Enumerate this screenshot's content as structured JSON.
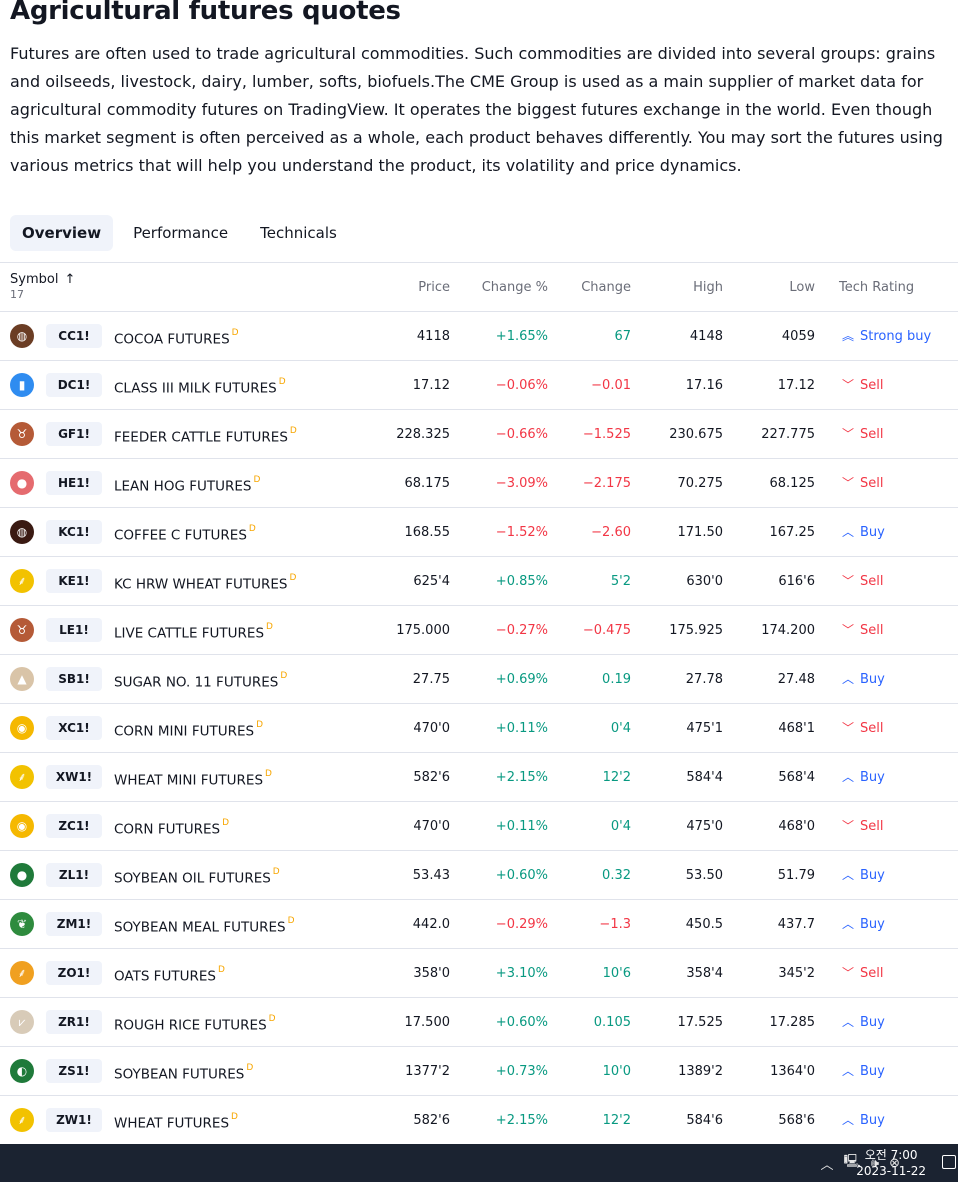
{
  "page": {
    "title": "Agricultural futures quotes",
    "description": "Futures are often used to trade agricultural commodities. Such commodities are divided into several groups: grains and oilseeds, livestock, dairy, lumber, softs, biofuels.The CME Group is used as a main supplier of market data for agricultural commodity futures on TradingView. It operates the biggest futures exchange in the world. Even though this market segment is often perceived as a whole, each product behaves differently. You may sort the futures using various metrics that will help you understand the product, its volatility and price dynamics."
  },
  "tabs": [
    {
      "label": "Overview",
      "active": true
    },
    {
      "label": "Performance",
      "active": false
    },
    {
      "label": "Technicals",
      "active": false
    }
  ],
  "table": {
    "headers": {
      "symbol": "Symbol",
      "count": "17",
      "sort_arrow": "↑",
      "price": "Price",
      "change_pct": "Change %",
      "change": "Change",
      "high": "High",
      "low": "Low",
      "tech_rating": "Tech Rating"
    },
    "delayed_mark": "D",
    "rows": [
      {
        "ticker": "CC1!",
        "name": "COCOA FUTURES",
        "price": "4118",
        "change_pct": "+1.65%",
        "change": "67",
        "high": "4148",
        "low": "4059",
        "rating": "Strong buy",
        "logo_icon": "cocoa-bean-icon",
        "logo_color": "#6b3d24",
        "dir": "pos"
      },
      {
        "ticker": "DC1!",
        "name": "CLASS III MILK FUTURES",
        "price": "17.12",
        "change_pct": "−0.06%",
        "change": "−0.01",
        "high": "17.16",
        "low": "17.12",
        "rating": "Sell",
        "logo_icon": "milk-bottle-icon",
        "logo_color": "#2f8cf0",
        "dir": "neg"
      },
      {
        "ticker": "GF1!",
        "name": "FEEDER CATTLE FUTURES",
        "price": "228.325",
        "change_pct": "−0.66%",
        "change": "−1.525",
        "high": "230.675",
        "low": "227.775",
        "rating": "Sell",
        "logo_icon": "cow-icon",
        "logo_color": "#b55a37",
        "dir": "neg"
      },
      {
        "ticker": "HE1!",
        "name": "LEAN HOG FUTURES",
        "price": "68.175",
        "change_pct": "−3.09%",
        "change": "−2.175",
        "high": "70.275",
        "low": "68.125",
        "rating": "Sell",
        "logo_icon": "pig-icon",
        "logo_color": "#e56b6f",
        "dir": "neg"
      },
      {
        "ticker": "KC1!",
        "name": "COFFEE C FUTURES",
        "price": "168.55",
        "change_pct": "−1.52%",
        "change": "−2.60",
        "high": "171.50",
        "low": "167.25",
        "rating": "Buy",
        "logo_icon": "coffee-bean-icon",
        "logo_color": "#3a1a12",
        "dir": "neg"
      },
      {
        "ticker": "KE1!",
        "name": "KC HRW WHEAT FUTURES",
        "price": "625'4",
        "change_pct": "+0.85%",
        "change": "5'2",
        "high": "630'0",
        "low": "616'6",
        "rating": "Sell",
        "logo_icon": "wheat-icon",
        "logo_color": "#f2c200",
        "dir": "pos"
      },
      {
        "ticker": "LE1!",
        "name": "LIVE CATTLE FUTURES",
        "price": "175.000",
        "change_pct": "−0.27%",
        "change": "−0.475",
        "high": "175.925",
        "low": "174.200",
        "rating": "Sell",
        "logo_icon": "cow-icon",
        "logo_color": "#b55a37",
        "dir": "neg"
      },
      {
        "ticker": "SB1!",
        "name": "SUGAR NO. 11 FUTURES",
        "price": "27.75",
        "change_pct": "+0.69%",
        "change": "0.19",
        "high": "27.78",
        "low": "27.48",
        "rating": "Buy",
        "logo_icon": "sugar-icon",
        "logo_color": "#d9c4a8",
        "dir": "pos"
      },
      {
        "ticker": "XC1!",
        "name": "CORN MINI FUTURES",
        "price": "470'0",
        "change_pct": "+0.11%",
        "change": "0'4",
        "high": "475'1",
        "low": "468'1",
        "rating": "Sell",
        "logo_icon": "corn-icon",
        "logo_color": "#f5b800",
        "dir": "pos"
      },
      {
        "ticker": "XW1!",
        "name": "WHEAT MINI FUTURES",
        "price": "582'6",
        "change_pct": "+2.15%",
        "change": "12'2",
        "high": "584'4",
        "low": "568'4",
        "rating": "Buy",
        "logo_icon": "wheat-icon",
        "logo_color": "#f2c200",
        "dir": "pos"
      },
      {
        "ticker": "ZC1!",
        "name": "CORN FUTURES",
        "price": "470'0",
        "change_pct": "+0.11%",
        "change": "0'4",
        "high": "475'0",
        "low": "468'0",
        "rating": "Sell",
        "logo_icon": "corn-icon",
        "logo_color": "#f5b800",
        "dir": "pos"
      },
      {
        "ticker": "ZL1!",
        "name": "SOYBEAN OIL FUTURES",
        "price": "53.43",
        "change_pct": "+0.60%",
        "change": "0.32",
        "high": "53.50",
        "low": "51.79",
        "rating": "Buy",
        "logo_icon": "oil-drop-icon",
        "logo_color": "#1f7a3a",
        "dir": "pos"
      },
      {
        "ticker": "ZM1!",
        "name": "SOYBEAN MEAL FUTURES",
        "price": "442.0",
        "change_pct": "−0.29%",
        "change": "−1.3",
        "high": "450.5",
        "low": "437.7",
        "rating": "Buy",
        "logo_icon": "soybean-meal-icon",
        "logo_color": "#2e8b3e",
        "dir": "neg"
      },
      {
        "ticker": "ZO1!",
        "name": "OATS FUTURES",
        "price": "358'0",
        "change_pct": "+3.10%",
        "change": "10'6",
        "high": "358'4",
        "low": "345'2",
        "rating": "Sell",
        "logo_icon": "oats-icon",
        "logo_color": "#f0a020",
        "dir": "pos"
      },
      {
        "ticker": "ZR1!",
        "name": "ROUGH RICE FUTURES",
        "price": "17.500",
        "change_pct": "+0.60%",
        "change": "0.105",
        "high": "17.525",
        "low": "17.285",
        "rating": "Buy",
        "logo_icon": "rice-icon",
        "logo_color": "#d8cbb8",
        "dir": "pos"
      },
      {
        "ticker": "ZS1!",
        "name": "SOYBEAN FUTURES",
        "price": "1377'2",
        "change_pct": "+0.73%",
        "change": "10'0",
        "high": "1389'2",
        "low": "1364'0",
        "rating": "Buy",
        "logo_icon": "soybean-icon",
        "logo_color": "#1f7a3a",
        "dir": "pos"
      },
      {
        "ticker": "ZW1!",
        "name": "WHEAT FUTURES",
        "price": "582'6",
        "change_pct": "+2.15%",
        "change": "12'2",
        "high": "584'6",
        "low": "568'6",
        "rating": "Buy",
        "logo_icon": "wheat-icon",
        "logo_color": "#f2c200",
        "dir": "pos"
      }
    ]
  },
  "taskbar": {
    "time": "오전 7:00",
    "date": "2023-11-22",
    "tray_icons": [
      "chevron-up-icon",
      "network-icon",
      "volume-icon",
      "mute-icon"
    ]
  }
}
